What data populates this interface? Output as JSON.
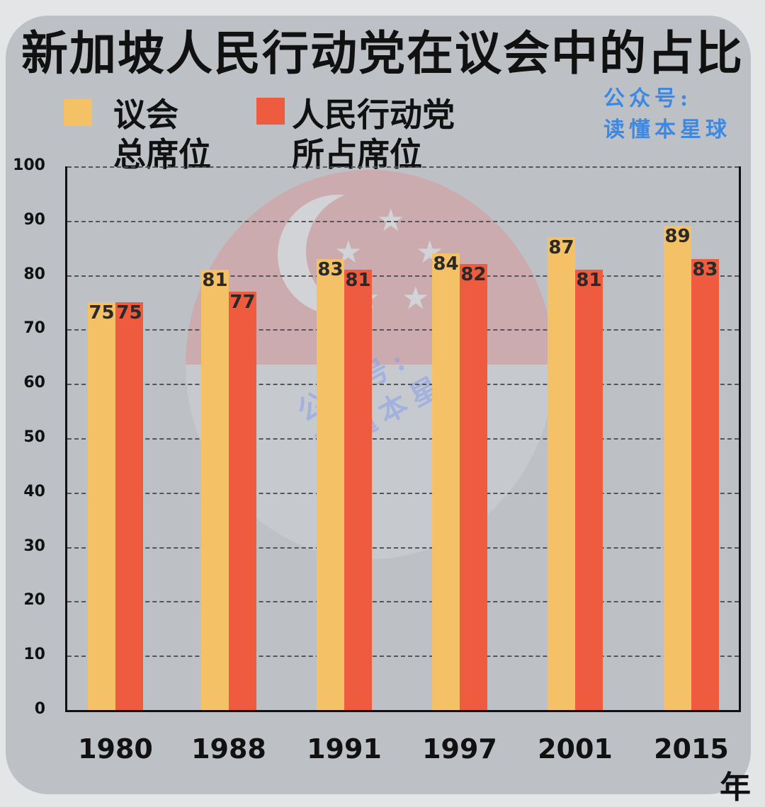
{
  "title": "新加坡人民行动党在议会中的占比",
  "legend": [
    {
      "line1": "议会",
      "line2": "总席位",
      "color": "#f5c166"
    },
    {
      "line1": "人民行动党",
      "line2": "所占席位",
      "color": "#ee5b3f"
    }
  ],
  "watermark": {
    "line1": "公众号:",
    "line2": "读懂本星球"
  },
  "x_unit": "年",
  "chart_data": {
    "type": "bar",
    "title": "新加坡人民行动党在议会中的占比",
    "xlabel": "年",
    "ylabel": "",
    "categories": [
      "1980",
      "1988",
      "1991",
      "1997",
      "2001",
      "2015"
    ],
    "series": [
      {
        "name": "议会总席位",
        "color": "#f5c166",
        "values": [
          75,
          81,
          83,
          84,
          87,
          89
        ]
      },
      {
        "name": "人民行动党所占席位",
        "color": "#ee5b3f",
        "values": [
          75,
          77,
          81,
          82,
          81,
          83
        ]
      }
    ],
    "ylim": [
      0,
      100
    ],
    "yticks": [
      "0",
      "10",
      "20",
      "30",
      "40",
      "50",
      "60",
      "70",
      "80",
      "90",
      "100"
    ],
    "grid": true,
    "legend_position": "top-left"
  }
}
